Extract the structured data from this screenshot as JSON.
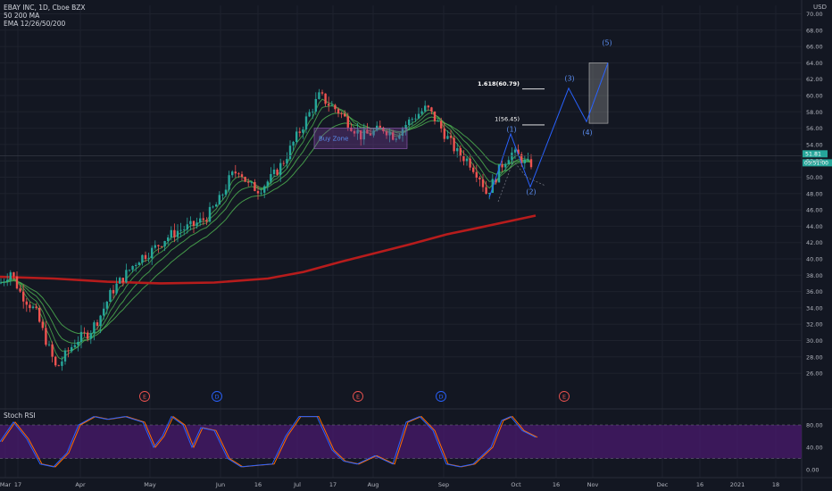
{
  "legend": {
    "line1": "EBAY INC, 1D, Cboe BZX",
    "line2": "50 200 MA",
    "line3": "EMA 12/26/50/200"
  },
  "currency": "USD",
  "price_labels": {
    "last": "51.81",
    "countdown": "05:51:00"
  },
  "chart_data": {
    "type": "candlestick",
    "y_ticks": [
      "26.00",
      "28.00",
      "30.00",
      "32.00",
      "34.00",
      "36.00",
      "38.00",
      "40.00",
      "42.00",
      "44.00",
      "46.00",
      "48.00",
      "50.00",
      "52.00",
      "54.00",
      "56.00",
      "58.00",
      "60.00",
      "62.00",
      "64.00",
      "66.00",
      "68.00",
      "70.00"
    ],
    "ylim": [
      25,
      71
    ],
    "x_ticks": [
      "Mar",
      "17",
      "Apr",
      "May",
      "Jun",
      "16",
      "Jul",
      "17",
      "Aug",
      "Sep",
      "Oct",
      "16",
      "Nov",
      "Dec",
      "16",
      "2021",
      "18"
    ],
    "annotations": {
      "buy_zone": "Buy Zone",
      "fib_1618": "1.618(60.79)",
      "fib_1": "1(56.45)",
      "waves": [
        "(1)",
        "(2)",
        "(3)",
        "(4)",
        "(5)"
      ],
      "events": [
        "E",
        "D",
        "E",
        "D",
        "E"
      ]
    },
    "oscillator": {
      "name": "Stoch RSI",
      "y_ticks": [
        "80.00",
        "40.00",
        "0.00"
      ],
      "ylim": [
        0,
        100
      ]
    }
  },
  "colors": {
    "background": "#131722",
    "up": "#26a69a",
    "down": "#ef5350",
    "ma200": "#b71c1c",
    "ema": "#4caf50",
    "wave": "#2962ff",
    "rsi_band": "#4a1a6e",
    "rsi_k": "#2962ff",
    "rsi_d": "#ff6d00"
  }
}
